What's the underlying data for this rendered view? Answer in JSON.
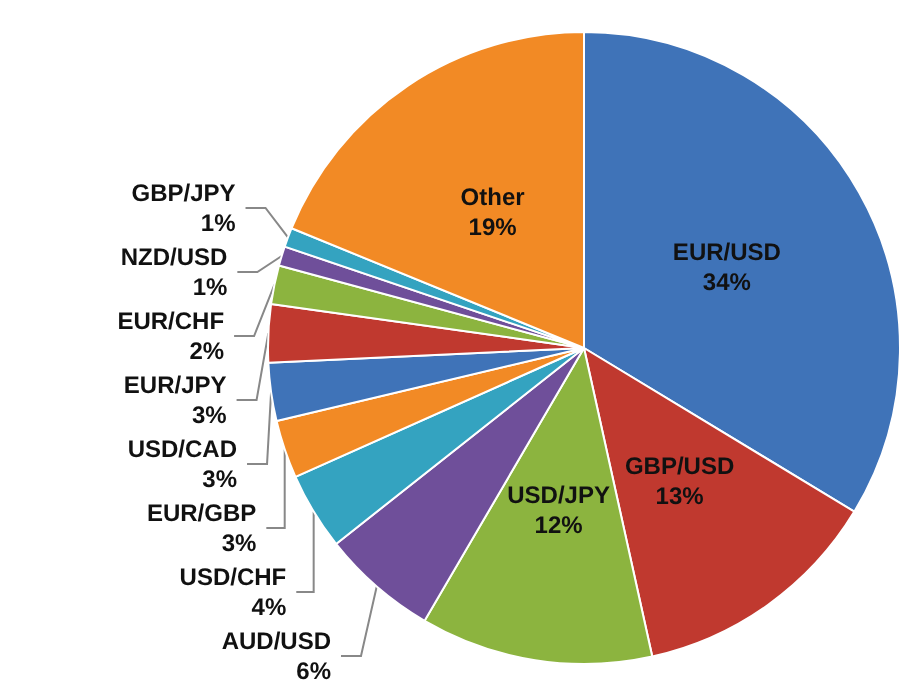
{
  "chart_data": {
    "type": "pie",
    "categories": [
      "EUR/USD",
      "GBP/USD",
      "USD/JPY",
      "AUD/USD",
      "USD/CHF",
      "EUR/GBP",
      "USD/CAD",
      "EUR/JPY",
      "EUR/CHF",
      "NZD/USD",
      "GBP/JPY",
      "Other"
    ],
    "values": [
      34,
      13,
      12,
      6,
      4,
      3,
      3,
      3,
      2,
      1,
      1,
      19
    ],
    "value_labels": [
      "34%",
      "13%",
      "12%",
      "6%",
      "4%",
      "3%",
      "3%",
      "3%",
      "2%",
      "1%",
      "1%",
      "19%"
    ],
    "colors": [
      "#3f73b8",
      "#c0392f",
      "#8cb43f",
      "#6f4f9a",
      "#34a3c0",
      "#f28a25",
      "#3f73b8",
      "#c0392f",
      "#8cb43f",
      "#6f4f9a",
      "#34a3c0",
      "#f28a25"
    ],
    "legend": false
  }
}
